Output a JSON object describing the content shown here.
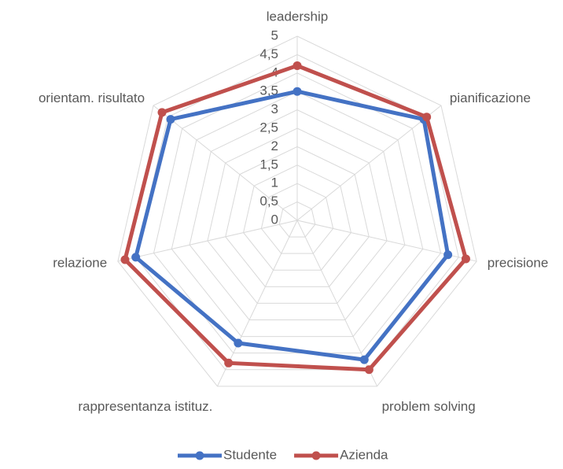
{
  "chart_data": {
    "type": "radar",
    "categories": [
      "leadership",
      "pianificazione",
      "precisione",
      "problem solving",
      "rappresentanza istituz.",
      "relazione",
      "orientam. risultato"
    ],
    "series": [
      {
        "name": "Studente",
        "color": "#4472c4",
        "values": [
          3.5,
          4.4,
          4.2,
          4.2,
          3.7,
          4.5,
          4.4
        ]
      },
      {
        "name": "Azienda",
        "color": "#c0504d",
        "values": [
          4.2,
          4.5,
          4.7,
          4.5,
          4.3,
          4.8,
          4.7
        ]
      }
    ],
    "ylim": [
      0,
      5
    ],
    "yticks": [
      0,
      {
        "value": 0.5,
        "label": "0,5"
      },
      1,
      {
        "value": 1.5,
        "label": "1,5"
      },
      2,
      {
        "value": 2.5,
        "label": "2,5"
      },
      3,
      {
        "value": 3.5,
        "label": "3,5"
      },
      4,
      {
        "value": 4.5,
        "label": "4,5"
      },
      5
    ],
    "grid": true,
    "legend": "bottom"
  }
}
